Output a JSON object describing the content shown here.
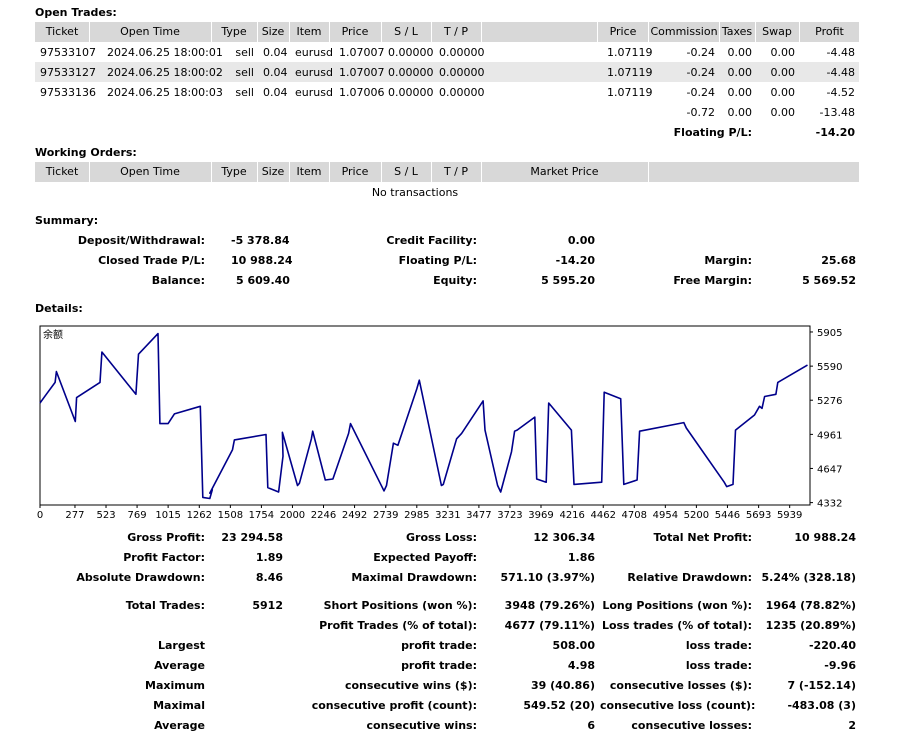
{
  "open_trades": {
    "title": "Open Trades:",
    "headers": [
      "Ticket",
      "Open Time",
      "Type",
      "Size",
      "Item",
      "Price",
      "S / L",
      "T / P",
      "Price",
      "Commission",
      "Taxes",
      "Swap",
      "Profit"
    ],
    "rows": [
      [
        "97533107",
        "2024.06.25 18:00:01",
        "sell",
        "0.04",
        "eurusd",
        "1.07007",
        "0.00000",
        "0.00000",
        "1.07119",
        "-0.24",
        "0.00",
        "0.00",
        "-4.48"
      ],
      [
        "97533127",
        "2024.06.25 18:00:02",
        "sell",
        "0.04",
        "eurusd",
        "1.07007",
        "0.00000",
        "0.00000",
        "1.07119",
        "-0.24",
        "0.00",
        "0.00",
        "-4.48"
      ],
      [
        "97533136",
        "2024.06.25 18:00:03",
        "sell",
        "0.04",
        "eurusd",
        "1.07006",
        "0.00000",
        "0.00000",
        "1.07119",
        "-0.24",
        "0.00",
        "0.00",
        "-4.52"
      ]
    ],
    "totals": {
      "commission": "-0.72",
      "taxes": "0.00",
      "swap": "0.00",
      "profit": "-13.48"
    },
    "floating_label": "Floating P/L:",
    "floating_value": "-14.20"
  },
  "working_orders": {
    "title": "Working Orders:",
    "headers": [
      "Ticket",
      "Open Time",
      "Type",
      "Size",
      "Item",
      "Price",
      "S / L",
      "T / P",
      "Market Price"
    ],
    "empty_text": "No transactions"
  },
  "summary": {
    "title": "Summary:",
    "deposit_label": "Deposit/Withdrawal:",
    "deposit_value": "-5 378.84",
    "credit_label": "Credit Facility:",
    "credit_value": "0.00",
    "closed_label": "Closed Trade P/L:",
    "closed_value": "10 988.24",
    "floating_label": "Floating P/L:",
    "floating_value": "-14.20",
    "margin_label": "Margin:",
    "margin_value": "25.68",
    "balance_label": "Balance:",
    "balance_value": "5 609.40",
    "equity_label": "Equity:",
    "equity_value": "5 595.20",
    "free_margin_label": "Free Margin:",
    "free_margin_value": "5 569.52"
  },
  "details": {
    "title": "Details:"
  },
  "chart_data": {
    "type": "line",
    "title": "余额",
    "xlabel": "",
    "ylabel": "",
    "x_ticks": [
      "0",
      "277",
      "523",
      "769",
      "1015",
      "1262",
      "1508",
      "1754",
      "2000",
      "2246",
      "2492",
      "2739",
      "2985",
      "3231",
      "3477",
      "3723",
      "3969",
      "4216",
      "4462",
      "4708",
      "4954",
      "5200",
      "5446",
      "5693",
      "5939"
    ],
    "y_ticks": [
      "5905",
      "5590",
      "5276",
      "4961",
      "4647",
      "4332"
    ],
    "xlim": [
      0,
      6100
    ],
    "ylim": [
      4310,
      5960
    ],
    "color": "#00008b",
    "x": [
      0,
      50,
      120,
      130,
      280,
      290,
      475,
      490,
      760,
      780,
      935,
      950,
      1015,
      1065,
      1270,
      1290,
      1345,
      1365,
      1345,
      1525,
      1540,
      1790,
      1805,
      1890,
      1925,
      1920,
      2040,
      2055,
      2150,
      2160,
      2260,
      2320,
      2445,
      2460,
      2725,
      2745,
      2800,
      2835,
      2985,
      3005,
      3180,
      3195,
      3300,
      3340,
      3510,
      3525,
      3625,
      3650,
      3735,
      3760,
      3780,
      3920,
      3935,
      4010,
      4030,
      4210,
      4230,
      4450,
      4470,
      4600,
      4625,
      4730,
      4750,
      5100,
      5120,
      5420,
      5440,
      5490,
      5510,
      5660,
      5700,
      5720,
      5740,
      5830,
      5845,
      6080
    ],
    "y": [
      5250,
      5330,
      5440,
      5540,
      5080,
      5300,
      5440,
      5720,
      5330,
      5700,
      5890,
      5060,
      5060,
      5150,
      5220,
      4380,
      4370,
      4450,
      4420,
      4820,
      4910,
      4960,
      4470,
      4430,
      4760,
      4980,
      4490,
      4510,
      4920,
      4990,
      4540,
      4550,
      4970,
      5060,
      4440,
      4490,
      4880,
      4860,
      5380,
      5460,
      4490,
      4500,
      4920,
      4970,
      5270,
      5000,
      4490,
      4430,
      4800,
      4990,
      5000,
      5120,
      4550,
      4520,
      5250,
      5000,
      4500,
      4520,
      5350,
      5290,
      4500,
      4540,
      4990,
      5070,
      5020,
      4520,
      4480,
      4500,
      5000,
      5140,
      5220,
      5200,
      5310,
      5330,
      5440,
      5600
    ]
  },
  "stats": [
    [
      {
        "label": "Gross Profit:",
        "value": "23 294.58"
      },
      {
        "label": "Gross Loss:",
        "value": "12 306.34"
      },
      {
        "label": "Total Net Profit:",
        "value": "10 988.24"
      }
    ],
    [
      {
        "label": "Profit Factor:",
        "value": "1.89"
      },
      {
        "label": "Expected Payoff:",
        "value": "1.86"
      },
      {
        "label": "",
        "value": ""
      }
    ],
    [
      {
        "label": "Absolute Drawdown:",
        "value": "8.46"
      },
      {
        "label": "Maximal Drawdown:",
        "value": "571.10 (3.97%)"
      },
      {
        "label": "Relative Drawdown:",
        "value": "5.24% (328.18)"
      }
    ],
    [
      {
        "label": "Total Trades:",
        "value": "5912"
      },
      {
        "label": "Short Positions (won %):",
        "value": "3948 (79.26%)"
      },
      {
        "label": "Long Positions (won %):",
        "value": "1964 (78.82%)"
      }
    ],
    [
      {
        "label": "",
        "value": ""
      },
      {
        "label": "Profit Trades (% of total):",
        "value": "4677 (79.11%)"
      },
      {
        "label": "Loss trades (% of total):",
        "value": "1235 (20.89%)"
      }
    ],
    [
      {
        "label": "Largest",
        "value": ""
      },
      {
        "label": "profit trade:",
        "value": "508.00"
      },
      {
        "label": "loss trade:",
        "value": "-220.40"
      }
    ],
    [
      {
        "label": "Average",
        "value": ""
      },
      {
        "label": "profit trade:",
        "value": "4.98"
      },
      {
        "label": "loss trade:",
        "value": "-9.96"
      }
    ],
    [
      {
        "label": "Maximum",
        "value": ""
      },
      {
        "label": "consecutive wins ($):",
        "value": "39 (40.86)"
      },
      {
        "label": "consecutive losses ($):",
        "value": "7 (-152.14)"
      }
    ],
    [
      {
        "label": "Maximal",
        "value": ""
      },
      {
        "label": "consecutive profit (count):",
        "value": "549.52 (20)"
      },
      {
        "label": "consecutive loss (count):",
        "value": "-483.08 (3)"
      }
    ],
    [
      {
        "label": "Average",
        "value": ""
      },
      {
        "label": "consecutive wins:",
        "value": "6"
      },
      {
        "label": "consecutive losses:",
        "value": "2"
      }
    ]
  ]
}
